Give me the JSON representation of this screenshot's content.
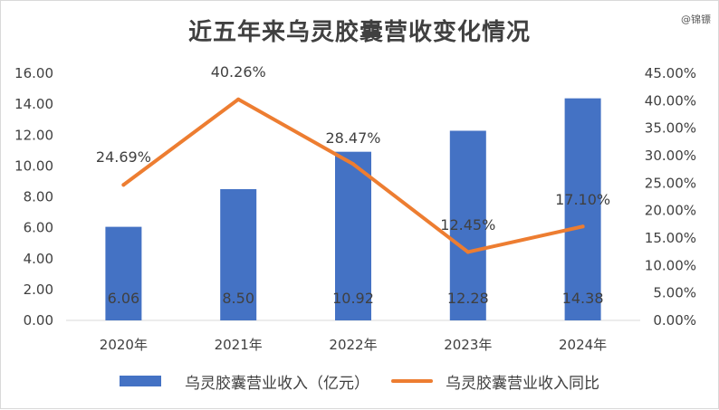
{
  "watermark": "@锦镖",
  "chart_data": {
    "type": "bar",
    "title": "近五年来乌灵胶囊营收变化情况",
    "categories": [
      "2020年",
      "2021年",
      "2022年",
      "2023年",
      "2024年"
    ],
    "series": [
      {
        "name": "乌灵胶囊营业收入（亿元）",
        "type": "bar",
        "axis": "left",
        "values": [
          6.06,
          8.5,
          10.92,
          12.28,
          14.38
        ],
        "labels": [
          "6.06",
          "8.50",
          "10.92",
          "12.28",
          "14.38"
        ]
      },
      {
        "name": "乌灵胶囊营业收入同比",
        "type": "line",
        "axis": "right",
        "values": [
          24.69,
          40.26,
          28.47,
          12.45,
          17.1
        ],
        "labels": [
          "24.69%",
          "40.26%",
          "28.47%",
          "12.45%",
          "17.10%"
        ]
      }
    ],
    "ylim_left": [
      0,
      16
    ],
    "yticks_left": [
      "0.00",
      "2.00",
      "4.00",
      "6.00",
      "8.00",
      "10.00",
      "12.00",
      "14.00",
      "16.00"
    ],
    "ylim_right": [
      0,
      45
    ],
    "yticks_right": [
      "0.00%",
      "5.00%",
      "10.00%",
      "15.00%",
      "20.00%",
      "25.00%",
      "30.00%",
      "35.00%",
      "40.00%",
      "45.00%"
    ],
    "xlabel": "",
    "ylabel": "",
    "legend_position": "bottom",
    "grid": false,
    "colors": {
      "bar": "#4472c4",
      "line": "#ed7d31"
    }
  }
}
